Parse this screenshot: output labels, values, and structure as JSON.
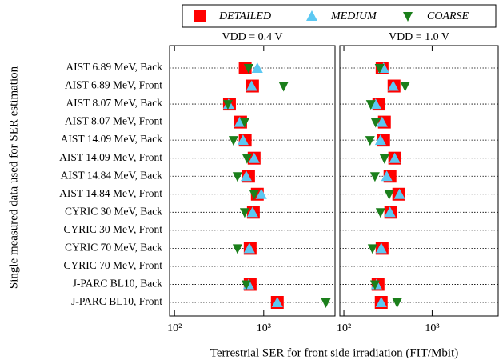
{
  "chart_data": {
    "type": "dot",
    "y_label": "Single measured data used for SER estimation",
    "x_label": "Terrestrial SER for front side irradiation (FIT/Mbit)",
    "categories": [
      "AIST 6.89 MeV, Back",
      "AIST 6.89 MeV, Front",
      "AIST 8.07 MeV, Back",
      "AIST 8.07 MeV, Front",
      "AIST 14.09 MeV, Back",
      "AIST 14.09 MeV, Front",
      "AIST 14.84 MeV, Back",
      "AIST 14.84 MeV, Front",
      "CYRIC 30 MeV, Back",
      "CYRIC 30 MeV, Front",
      "CYRIC 70 MeV, Back",
      "CYRIC 70 MeV, Front",
      "J-PARC BL10, Back",
      "J-PARC BL10, Front"
    ],
    "legend": [
      {
        "name": "DETAILED",
        "color": "#ff0000",
        "marker": "square"
      },
      {
        "name": "MEDIUM",
        "color": "#5cc8f2",
        "marker": "triangle-up"
      },
      {
        "name": "COARSE",
        "color": "#1b7f1b",
        "marker": "triangle-down"
      }
    ],
    "log_x": true,
    "grid": true,
    "panels": [
      {
        "title": "VDD = 0.4 V",
        "xlim": [
          88,
          6300
        ],
        "xticks": [
          {
            "value": 100,
            "label": "10²"
          },
          {
            "value": 1000,
            "label": "10³"
          }
        ],
        "series": [
          {
            "values": [
              620,
              750,
              413,
              551,
              620,
              781,
              677,
              848,
              766,
              null,
              705,
              null,
              705,
              1420
            ]
          },
          {
            "values": [
              848,
              733,
              404,
              539,
              586,
              781,
              637,
              940,
              750,
              null,
              690,
              null,
              677,
              1420
            ]
          },
          {
            "values": [
              677,
              1670,
              396,
              611,
              458,
              650,
              507,
              781,
              611,
              null,
              507,
              null,
              637,
              4970
            ]
          }
        ]
      },
      {
        "title": "VDD = 1.0 V",
        "xlim": [
          90,
          5600
        ],
        "xticks": [
          {
            "value": 100,
            "label": "10²"
          },
          {
            "value": 1000,
            "label": "10³"
          }
        ],
        "series": [
          {
            "values": [
              271,
              370,
              249,
              288,
              282,
              377,
              333,
              419,
              340,
              null,
              271,
              null,
              244,
              265
            ]
          },
          {
            "values": [
              282,
              362,
              229,
              271,
              260,
              377,
              306,
              427,
              333,
              null,
              265,
              null,
              234,
              265
            ]
          },
          {
            "values": [
              254,
              494,
              202,
              229,
              198,
              288,
              225,
              326,
              260,
              null,
              211,
              null,
              225,
              401
            ]
          }
        ]
      }
    ]
  }
}
